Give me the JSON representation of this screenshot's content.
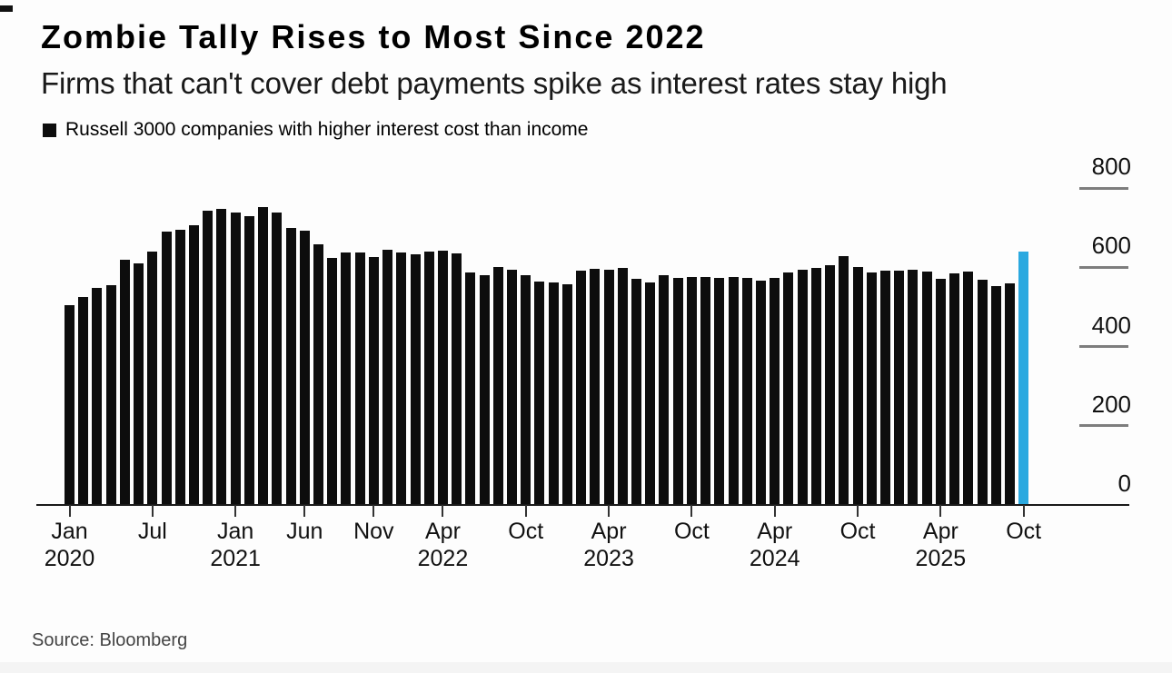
{
  "header": {
    "title": "Zombie Tally Rises to Most Since 2022",
    "subtitle": "Firms that can't cover debt payments spike as interest rates stay high"
  },
  "legend": {
    "label": "Russell 3000 companies with higher interest cost than income"
  },
  "footer": {
    "source": "Source: Bloomberg"
  },
  "colors": {
    "bar": "#0d0d0d",
    "highlight": "#2BA9E0",
    "axis": "#1a1a1a",
    "grid_dash": "#7d7d7d"
  },
  "chart_data": {
    "type": "bar",
    "title": "Zombie Tally Rises to Most Since 2022",
    "subtitle": "Firms that can't cover debt payments spike as interest rates stay high",
    "series_name": "Russell 3000 companies with higher interest cost than income",
    "unit": "companies",
    "ylim": [
      0,
      800
    ],
    "y_ticks": [
      0,
      200,
      400,
      600,
      800
    ],
    "grid": "right-side tick dashes only",
    "legend_position": "top-left",
    "yaxis_side": "right",
    "months": [
      "2020-01",
      "2020-02",
      "2020-03",
      "2020-04",
      "2020-05",
      "2020-06",
      "2020-07",
      "2020-08",
      "2020-09",
      "2020-10",
      "2020-11",
      "2020-12",
      "2021-01",
      "2021-02",
      "2021-03",
      "2021-04",
      "2021-05",
      "2021-06",
      "2021-07",
      "2021-08",
      "2021-09",
      "2021-10",
      "2021-11",
      "2021-12",
      "2022-01",
      "2022-02",
      "2022-03",
      "2022-04",
      "2022-05",
      "2022-06",
      "2022-07",
      "2022-08",
      "2022-09",
      "2022-10",
      "2022-11",
      "2022-12",
      "2023-01",
      "2023-02",
      "2023-03",
      "2023-04",
      "2023-05",
      "2023-06",
      "2023-07",
      "2023-08",
      "2023-09",
      "2023-10",
      "2023-11",
      "2023-12",
      "2024-01",
      "2024-02",
      "2024-03",
      "2024-04",
      "2024-05",
      "2024-06",
      "2024-07",
      "2024-08",
      "2024-09",
      "2024-10",
      "2024-11",
      "2024-12",
      "2025-01",
      "2025-02",
      "2025-03",
      "2025-04",
      "2025-05",
      "2025-06",
      "2025-07",
      "2025-08",
      "2025-09",
      "2025-10"
    ],
    "values": [
      505,
      525,
      548,
      555,
      618,
      610,
      640,
      690,
      695,
      705,
      742,
      748,
      738,
      730,
      752,
      738,
      700,
      692,
      657,
      623,
      637,
      637,
      626,
      644,
      637,
      633,
      639,
      642,
      635,
      587,
      580,
      600,
      594,
      580,
      565,
      562,
      558,
      591,
      596,
      593,
      599,
      571,
      562,
      581,
      572,
      575,
      575,
      572,
      575,
      573,
      566,
      572,
      587,
      593,
      598,
      605,
      628,
      600,
      587,
      591,
      591,
      594,
      589,
      571,
      584,
      589,
      568,
      552,
      559,
      639
    ],
    "highlight_index": 69,
    "highlight_label": "Oct 2025",
    "x_ticks": [
      {
        "index": 0,
        "month": "Jan",
        "year": "2020"
      },
      {
        "index": 6,
        "month": "Jul"
      },
      {
        "index": 12,
        "month": "Jan",
        "year": "2021"
      },
      {
        "index": 17,
        "month": "Jun"
      },
      {
        "index": 22,
        "month": "Nov"
      },
      {
        "index": 27,
        "month": "Apr",
        "year": "2022"
      },
      {
        "index": 33,
        "month": "Oct"
      },
      {
        "index": 39,
        "month": "Apr",
        "year": "2023"
      },
      {
        "index": 45,
        "month": "Oct"
      },
      {
        "index": 51,
        "month": "Apr",
        "year": "2024"
      },
      {
        "index": 57,
        "month": "Oct"
      },
      {
        "index": 63,
        "month": "Apr",
        "year": "2025"
      },
      {
        "index": 69,
        "month": "Oct"
      }
    ]
  }
}
